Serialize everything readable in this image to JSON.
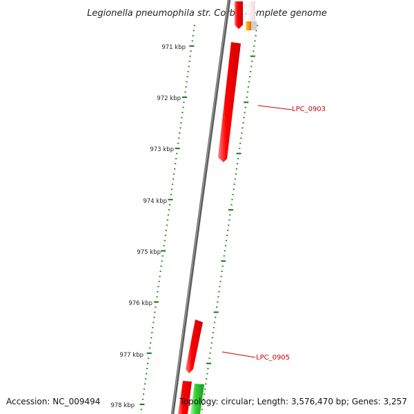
{
  "title": "Legionella pneumophila str. Corby, complete genome",
  "ticks": [
    "971 kbp",
    "972 kbp",
    "973 kbp",
    "974 kbp",
    "975 kbp",
    "976 kbp",
    "977 kbp",
    "978 kbp"
  ],
  "genes": [
    {
      "label": "LPC_0903"
    },
    {
      "label": "LPC_0905"
    }
  ],
  "footer": {
    "accession": "Accession: NC_009494",
    "topology": "Topology: circular; Length: 3,576,470 bp; Genes: 3,257"
  },
  "colors": {
    "forward_gene": "#ff0000",
    "reverse_gene": "#33cc33",
    "other_feature": "#ff9900",
    "tick": "#117711",
    "backbone": "#808080"
  }
}
